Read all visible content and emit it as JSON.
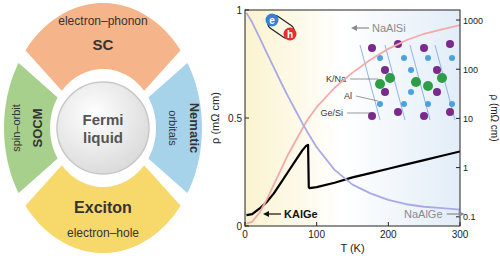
{
  "diagram": {
    "center": [
      "Fermi",
      "liquid"
    ],
    "segments": [
      {
        "outer": "electron–phonon",
        "inner": "SC",
        "color": "#f6b48a"
      },
      {
        "outer": "Nematic",
        "inner": "orbitals",
        "color": "#a7d3ea"
      },
      {
        "outer": "electron–hole",
        "inner": "Exciton",
        "color": "#f7d86a"
      },
      {
        "outer": "spin–orbit",
        "inner": "SOCM",
        "color": "#a8d08d"
      }
    ]
  },
  "icon": [
    "e",
    "h"
  ],
  "inset": {
    "labels": [
      "K/Na",
      "Al",
      "Ge/Si"
    ]
  },
  "chart_data": {
    "type": "line",
    "x_label": "T (K)",
    "y_label": "ρ (mΩ cm)",
    "y2_label": "ρ (mΩ cm)",
    "x": [
      2,
      10,
      20,
      30,
      40,
      50,
      60,
      70,
      80,
      85,
      88,
      89,
      90,
      100,
      125,
      150,
      175,
      200,
      225,
      250,
      275,
      300
    ],
    "series": [
      {
        "name": "KAlGe",
        "color": "#000000",
        "values": [
          0.05,
          0.055,
          0.08,
          0.11,
          0.15,
          0.2,
          0.25,
          0.3,
          0.35,
          0.37,
          0.375,
          0.18,
          0.175,
          0.18,
          0.2,
          0.225,
          0.245,
          0.265,
          0.285,
          0.305,
          0.325,
          0.345
        ]
      },
      {
        "name": "NaAlSi",
        "color": "#f4a9a9",
        "values": [
          0.01,
          0.02,
          0.06,
          0.12,
          0.19,
          0.26,
          0.33,
          0.39,
          0.45,
          0.48,
          0.495,
          0.5,
          0.505,
          0.55,
          0.64,
          0.71,
          0.77,
          0.82,
          0.86,
          0.89,
          0.91,
          0.93
        ]
      },
      {
        "name": "NaAlGe",
        "color": "#a9a9e6",
        "axis": "y2",
        "values": [
          1400,
          900,
          450,
          220,
          110,
          55,
          28,
          15,
          8,
          6,
          5,
          4.8,
          4.5,
          2.6,
          0.9,
          0.45,
          0.3,
          0.22,
          0.18,
          0.16,
          0.15,
          0.14
        ]
      }
    ],
    "xlim": [
      0,
      300
    ],
    "xticks": [
      0,
      100,
      200,
      300
    ],
    "ylim": [
      0,
      1
    ],
    "yticks": [
      0,
      0.5,
      1
    ],
    "y2lim": [
      0.065,
      1600
    ],
    "y2ticks": [
      0.1,
      1,
      10,
      100,
      1000
    ],
    "log": "y2",
    "grid": false
  }
}
